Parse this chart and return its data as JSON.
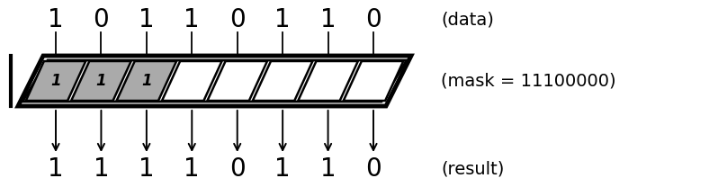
{
  "data_bits": [
    1,
    0,
    1,
    1,
    0,
    1,
    1,
    0
  ],
  "mask_bits": [
    1,
    1,
    1,
    0,
    0,
    0,
    0,
    0
  ],
  "result_bits": [
    1,
    1,
    1,
    1,
    0,
    1,
    1,
    0
  ],
  "label_data": "(data)",
  "label_mask": "(mask = 11100000)",
  "label_result": "(result)",
  "slot_gray": "#aaaaaa",
  "slot_white": "#ffffff",
  "grate_bg": "#ffffff",
  "edge_color": "#000000",
  "text_color": "#000000",
  "n_bits": 8,
  "fig_width": 8.08,
  "fig_height": 2.18,
  "dpi": 100
}
